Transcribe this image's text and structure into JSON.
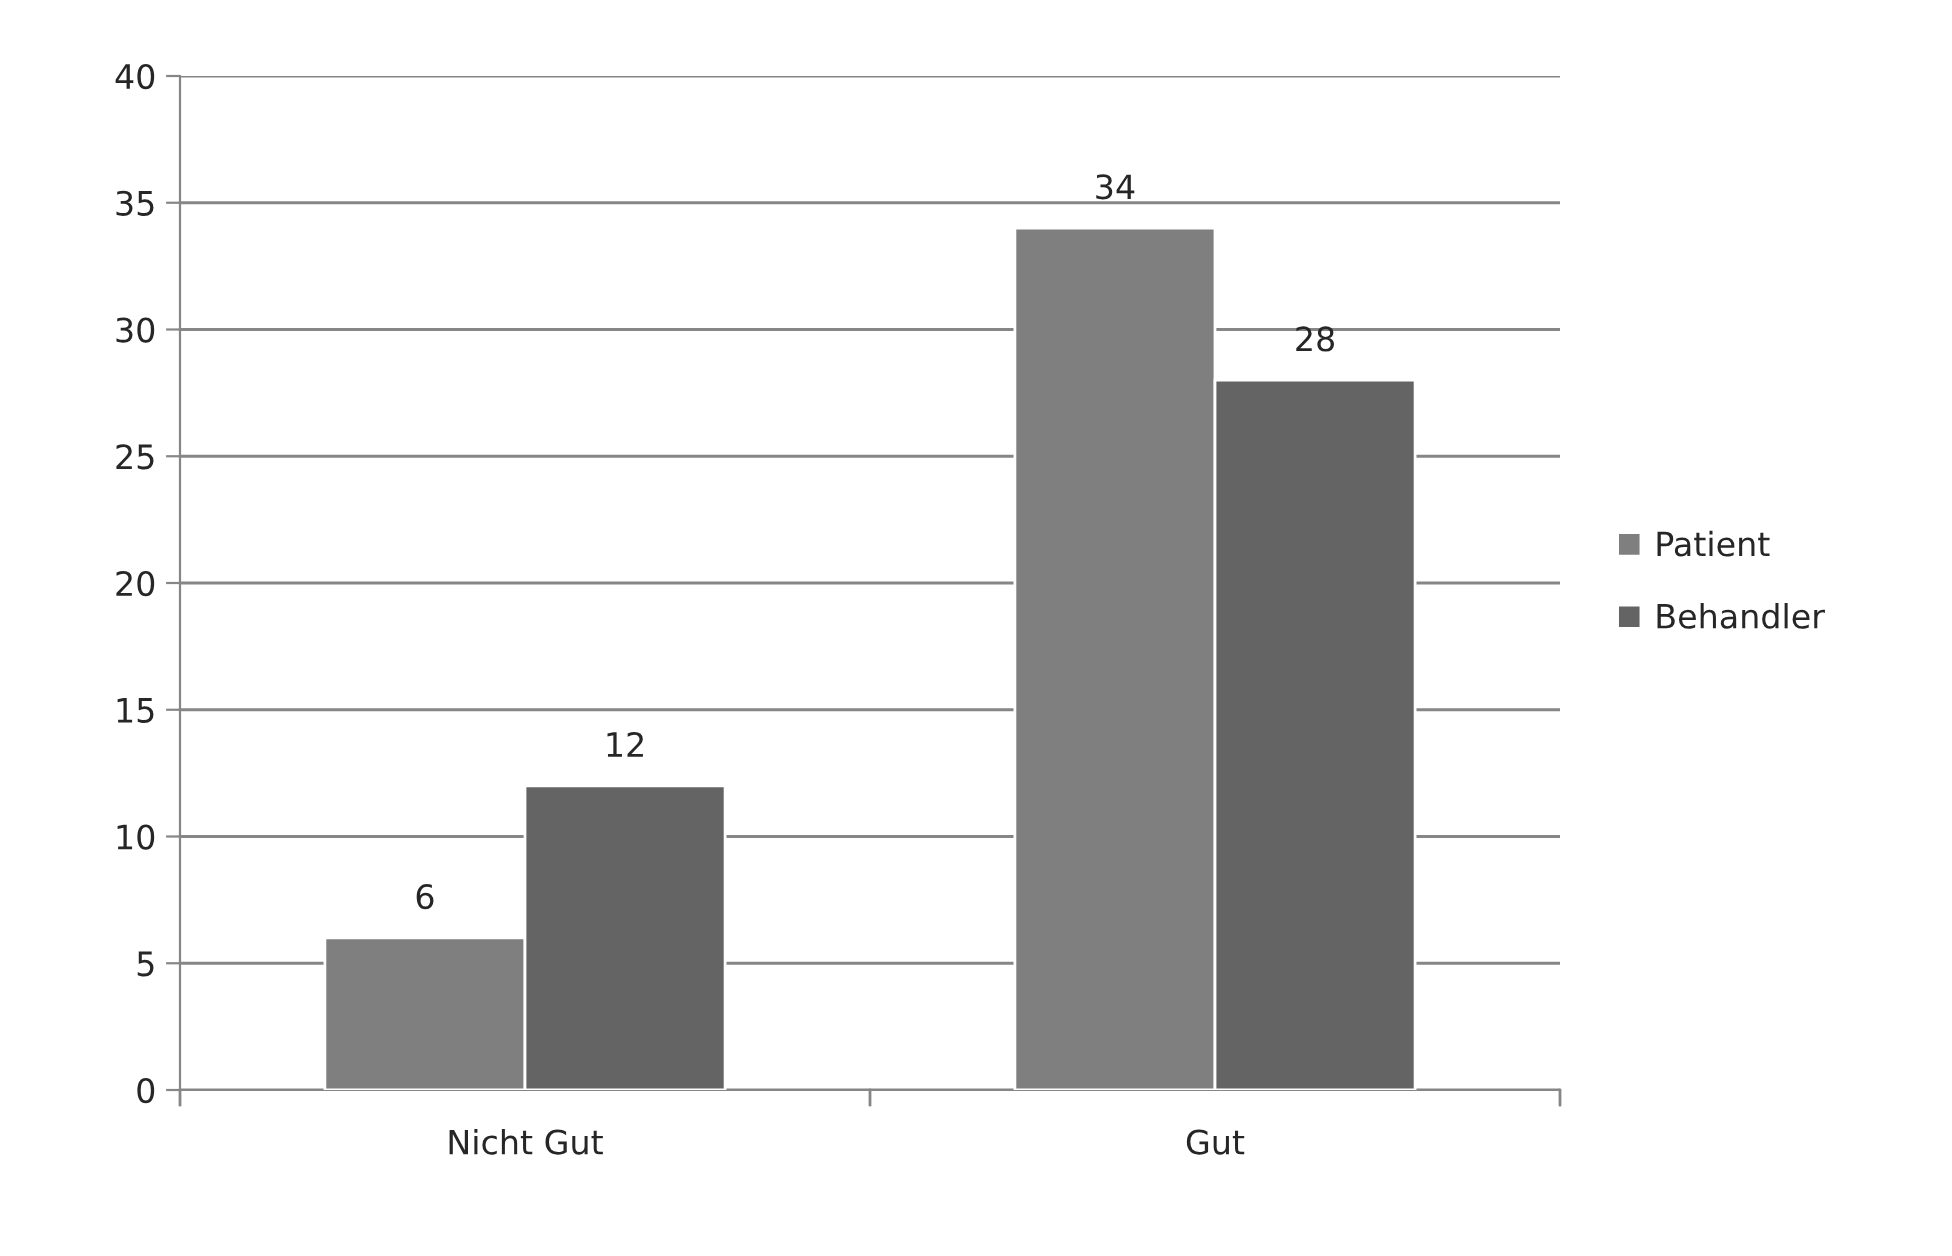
{
  "chart_data": {
    "type": "bar",
    "categories": [
      "Nicht Gut",
      "Gut"
    ],
    "series": [
      {
        "name": "Patient",
        "color": "#7f7f7f",
        "values": [
          6,
          34
        ]
      },
      {
        "name": "Behandler",
        "color": "#646464",
        "values": [
          12,
          28
        ]
      }
    ],
    "ylim": [
      0,
      40
    ],
    "yticks": [
      0,
      5,
      10,
      15,
      20,
      25,
      30,
      35,
      40
    ],
    "grid": "y",
    "legend": "right",
    "data_labels": true
  }
}
